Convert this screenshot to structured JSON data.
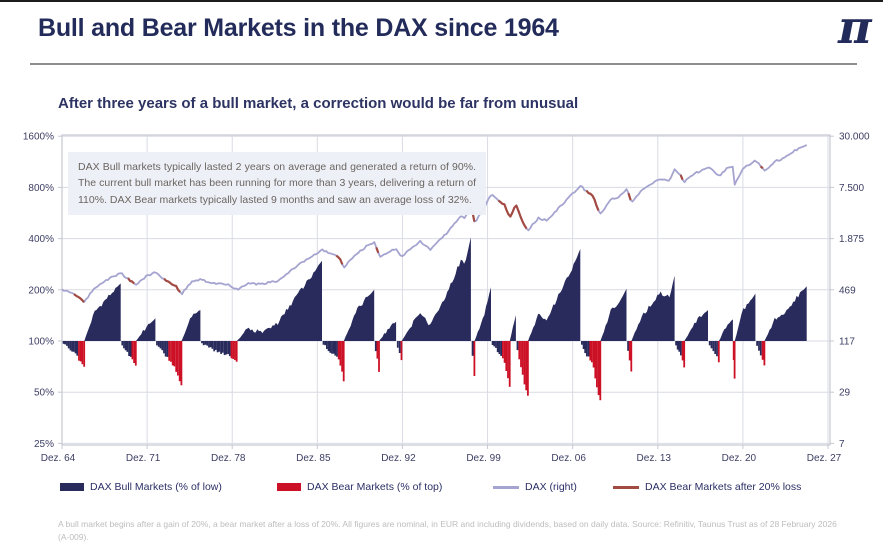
{
  "header": {
    "title": "Bull and Bear Markets in the DAX since 1964",
    "logo_symbol": "π"
  },
  "subtitle": "After three years of a bull market, a correction would be far from unusual",
  "annotation": "DAX Bull markets typically lasted 2 years on average and generated a return of 90%. The current bull market has been running for more than 3 years, delivering a return of 110%. DAX Bear markets typically lasted 9 months and saw an average loss of 32%.",
  "footnote": "A bull market begins after a gain of 20%, a bear market after a loss of 20%. All figures are nominal, in EUR and including dividends, based on daily data. Source: Refinitiv, Taunus Trust as of 28 February 2026 (A-009).",
  "colors": {
    "navy": "#282b5c",
    "red": "#cc1126",
    "dax_line": "#a5a4d0",
    "dax_bear_line": "#a34a42",
    "grid": "#dadbe4",
    "plot_border": "#c6c8d2",
    "axis_label": "#3b3e63",
    "title": "#222b5a",
    "annotation_bg": "#edeff7",
    "annotation_text": "#6a6560",
    "footnote": "#bdbdbd"
  },
  "legend": {
    "items": [
      {
        "label": "DAX Bull Markets (% of low)",
        "swatch": "area",
        "color_key": "navy"
      },
      {
        "label": "DAX Bear Markets (% of top)",
        "swatch": "area",
        "color_key": "red"
      },
      {
        "label": "DAX (right)",
        "swatch": "line",
        "color_key": "dax_line"
      },
      {
        "label": "DAX Bear Markets after 20% loss",
        "swatch": "line",
        "color_key": "dax_bear_line"
      }
    ]
  },
  "axes": {
    "y_left": {
      "labels": [
        "1600%",
        "800%",
        "400%",
        "200%",
        "100%",
        "50%",
        "25%"
      ]
    },
    "y_right": {
      "labels": [
        "30.000",
        "7.500",
        "1.875",
        "469",
        "117",
        "29",
        "7"
      ]
    },
    "x": {
      "labels": [
        "Dez. 64",
        "Dez. 71",
        "Dez. 78",
        "Dez. 85",
        "Dez. 92",
        "Dez. 99",
        "Dez. 06",
        "Dez. 13",
        "Dez. 20",
        "Dez. 27"
      ]
    }
  },
  "chart_data": {
    "type": "area+line",
    "title": "Bull and Bear Markets in the DAX since 1964",
    "x_domain_years": [
      1964.92,
      2027.92
    ],
    "x_tick_years": [
      1964.92,
      1971.92,
      1978.92,
      1985.92,
      1992.92,
      1999.92,
      2006.92,
      2013.92,
      2020.92,
      2027.92
    ],
    "y_left": {
      "scale": "log2",
      "unit": "% of segment extreme",
      "ticks_pct": [
        1600,
        800,
        400,
        200,
        100,
        50,
        25
      ]
    },
    "y_right": {
      "scale": "log4",
      "unit": "DAX index level",
      "ticks": [
        30000,
        7500,
        1875,
        469,
        117,
        29,
        7
      ]
    },
    "legend_position": "bottom",
    "grid": true,
    "bull_segments": [
      [
        [
          1966.75,
          100
        ],
        [
          1967.6,
          148
        ],
        [
          1968.6,
          178
        ],
        [
          1969.75,
          218
        ]
      ],
      [
        [
          1971.0,
          100
        ],
        [
          1971.9,
          122
        ],
        [
          1972.6,
          136
        ]
      ],
      [
        [
          1974.75,
          100
        ],
        [
          1975.6,
          142
        ],
        [
          1976.3,
          152
        ]
      ],
      [
        [
          1979.3,
          100
        ],
        [
          1980.2,
          118
        ],
        [
          1981.3,
          112
        ],
        [
          1982.7,
          128
        ],
        [
          1984.1,
          180
        ],
        [
          1985.2,
          228
        ],
        [
          1986.3,
          296
        ]
      ],
      [
        [
          1988.1,
          100
        ],
        [
          1989.1,
          148
        ],
        [
          1989.9,
          178
        ],
        [
          1990.6,
          200
        ]
      ],
      [
        [
          1991.0,
          100
        ],
        [
          1992.0,
          124
        ],
        [
          1992.4,
          130
        ]
      ],
      [
        [
          1992.85,
          100
        ],
        [
          1994.4,
          150
        ],
        [
          1995.2,
          123
        ],
        [
          1996.5,
          185
        ],
        [
          1997.75,
          302
        ],
        [
          1998.05,
          278
        ],
        [
          1998.55,
          408
        ]
      ],
      [
        [
          1998.85,
          100
        ],
        [
          1999.6,
          138
        ],
        [
          2000.2,
          207
        ]
      ],
      [
        [
          2001.75,
          100
        ],
        [
          2002.25,
          142
        ]
      ],
      [
        [
          2003.25,
          100
        ],
        [
          2004.1,
          142
        ],
        [
          2004.8,
          136
        ],
        [
          2006.1,
          205
        ],
        [
          2007.1,
          290
        ],
        [
          2007.55,
          348
        ]
      ],
      [
        [
          2009.2,
          100
        ],
        [
          2010.1,
          152
        ],
        [
          2010.6,
          158
        ],
        [
          2011.35,
          203
        ]
      ],
      [
        [
          2011.75,
          100
        ],
        [
          2012.6,
          138
        ],
        [
          2013.6,
          172
        ],
        [
          2014.1,
          192
        ],
        [
          2014.9,
          182
        ],
        [
          2015.3,
          242
        ]
      ],
      [
        [
          2016.1,
          100
        ],
        [
          2017.1,
          132
        ],
        [
          2018.05,
          152
        ]
      ],
      [
        [
          2018.95,
          100
        ],
        [
          2019.6,
          124
        ],
        [
          2020.1,
          134
        ]
      ],
      [
        [
          2020.25,
          100
        ],
        [
          2020.9,
          152
        ],
        [
          2021.6,
          176
        ],
        [
          2021.95,
          190
        ]
      ],
      [
        [
          2022.7,
          100
        ],
        [
          2023.6,
          136
        ],
        [
          2024.1,
          142
        ],
        [
          2024.9,
          162
        ],
        [
          2025.6,
          190
        ],
        [
          2026.17,
          210
        ]
      ]
    ],
    "bear_segments": [
      [
        [
          1964.92,
          100
        ],
        [
          1965.7,
          89
        ],
        [
          1966.1,
          84
        ],
        [
          1966.75,
          71
        ]
      ],
      [
        [
          1969.75,
          100
        ],
        [
          1970.5,
          83
        ],
        [
          1971.0,
          74
        ]
      ],
      [
        [
          1972.6,
          100
        ],
        [
          1973.6,
          81
        ],
        [
          1974.2,
          72
        ],
        [
          1974.75,
          55
        ]
      ],
      [
        [
          1976.3,
          100
        ],
        [
          1977.5,
          89
        ],
        [
          1978.6,
          84
        ],
        [
          1979.3,
          76
        ]
      ],
      [
        [
          1986.3,
          100
        ],
        [
          1987.1,
          86
        ],
        [
          1987.7,
          80
        ],
        [
          1988.1,
          60
        ]
      ],
      [
        [
          1990.6,
          100
        ],
        [
          1990.85,
          82
        ],
        [
          1991.0,
          66
        ]
      ],
      [
        [
          1992.4,
          100
        ],
        [
          1992.85,
          79
        ]
      ],
      [
        [
          1998.55,
          100
        ],
        [
          1998.72,
          82
        ],
        [
          1998.85,
          63
        ]
      ],
      [
        [
          2000.2,
          100
        ],
        [
          2000.8,
          88
        ],
        [
          2001.3,
          77
        ],
        [
          2001.6,
          62
        ],
        [
          2001.75,
          54
        ]
      ],
      [
        [
          2002.25,
          100
        ],
        [
          2002.7,
          70
        ],
        [
          2003.0,
          55
        ],
        [
          2003.25,
          49
        ]
      ],
      [
        [
          2007.55,
          100
        ],
        [
          2008.1,
          84
        ],
        [
          2008.6,
          74
        ],
        [
          2008.9,
          56
        ],
        [
          2009.2,
          45
        ]
      ],
      [
        [
          2011.35,
          100
        ],
        [
          2011.6,
          81
        ],
        [
          2011.75,
          68
        ]
      ],
      [
        [
          2015.3,
          100
        ],
        [
          2015.8,
          85
        ],
        [
          2016.1,
          71
        ]
      ],
      [
        [
          2018.05,
          100
        ],
        [
          2018.6,
          88
        ],
        [
          2018.95,
          77
        ]
      ],
      [
        [
          2020.1,
          100
        ],
        [
          2020.25,
          61
        ]
      ],
      [
        [
          2021.95,
          100
        ],
        [
          2022.3,
          88
        ],
        [
          2022.55,
          80
        ],
        [
          2022.7,
          74
        ]
      ]
    ],
    "dax_line": [
      [
        1964.92,
        470
      ],
      [
        1965.7,
        420
      ],
      [
        1966.1,
        400
      ],
      [
        1966.75,
        340
      ],
      [
        1967.6,
        500
      ],
      [
        1968.6,
        600
      ],
      [
        1969.75,
        740
      ],
      [
        1970.5,
        615
      ],
      [
        1971.0,
        548
      ],
      [
        1971.9,
        668
      ],
      [
        1972.6,
        745
      ],
      [
        1973.6,
        600
      ],
      [
        1974.2,
        535
      ],
      [
        1974.75,
        410
      ],
      [
        1975.6,
        580
      ],
      [
        1976.3,
        625
      ],
      [
        1977.5,
        556
      ],
      [
        1978.6,
        525
      ],
      [
        1979.3,
        475
      ],
      [
        1980.2,
        560
      ],
      [
        1981.3,
        532
      ],
      [
        1982.7,
        608
      ],
      [
        1984.1,
        855
      ],
      [
        1985.2,
        1083
      ],
      [
        1986.3,
        1405
      ],
      [
        1987.1,
        1210
      ],
      [
        1987.7,
        1125
      ],
      [
        1988.1,
        845
      ],
      [
        1989.1,
        1250
      ],
      [
        1989.9,
        1505
      ],
      [
        1990.6,
        1690
      ],
      [
        1990.85,
        1385
      ],
      [
        1991.0,
        1115
      ],
      [
        1992.0,
        1385
      ],
      [
        1992.4,
        1450
      ],
      [
        1992.85,
        1145
      ],
      [
        1994.4,
        1720
      ],
      [
        1995.2,
        1410
      ],
      [
        1996.5,
        2120
      ],
      [
        1997.75,
        3465
      ],
      [
        1998.05,
        3190
      ],
      [
        1998.55,
        4680
      ],
      [
        1998.72,
        3835
      ],
      [
        1998.85,
        2950
      ],
      [
        1999.6,
        4070
      ],
      [
        2000.2,
        6105
      ],
      [
        2000.8,
        5370
      ],
      [
        2001.3,
        4700
      ],
      [
        2001.6,
        3785
      ],
      [
        2001.75,
        3295
      ],
      [
        2002.25,
        4680
      ],
      [
        2002.7,
        3275
      ],
      [
        2003.0,
        2575
      ],
      [
        2003.25,
        2295
      ],
      [
        2004.1,
        3260
      ],
      [
        2004.8,
        3120
      ],
      [
        2006.1,
        4705
      ],
      [
        2007.1,
        6655
      ],
      [
        2007.55,
        7985
      ],
      [
        2008.1,
        6710
      ],
      [
        2008.6,
        5910
      ],
      [
        2008.9,
        4470
      ],
      [
        2009.2,
        3595
      ],
      [
        2010.1,
        5465
      ],
      [
        2010.6,
        5680
      ],
      [
        2011.35,
        7300
      ],
      [
        2011.6,
        5915
      ],
      [
        2011.75,
        4965
      ],
      [
        2012.6,
        6850
      ],
      [
        2013.6,
        8540
      ],
      [
        2014.1,
        9535
      ],
      [
        2014.9,
        9035
      ],
      [
        2015.3,
        12015
      ],
      [
        2015.8,
        10215
      ],
      [
        2016.1,
        8530
      ],
      [
        2017.1,
        11260
      ],
      [
        2018.05,
        12965
      ],
      [
        2018.6,
        11410
      ],
      [
        2018.95,
        9985
      ],
      [
        2019.6,
        12380
      ],
      [
        2020.1,
        13380
      ],
      [
        2020.25,
        8160
      ],
      [
        2020.9,
        12405
      ],
      [
        2021.6,
        14365
      ],
      [
        2021.95,
        15510
      ],
      [
        2022.3,
        13650
      ],
      [
        2022.55,
        12410
      ],
      [
        2022.7,
        11475
      ],
      [
        2023.6,
        15605
      ],
      [
        2024.1,
        16295
      ],
      [
        2024.9,
        18590
      ],
      [
        2025.6,
        21800
      ],
      [
        2026.17,
        24095
      ]
    ],
    "dax_bear_line_ranges": [
      [
        1965.9,
        1966.75
      ],
      [
        1970.2,
        1971.0
      ],
      [
        1973.3,
        1974.75
      ],
      [
        1987.4,
        1988.1
      ],
      [
        1990.75,
        1991.0
      ],
      [
        1998.65,
        1998.85
      ],
      [
        2000.7,
        2003.25
      ],
      [
        2008.0,
        2009.2
      ],
      [
        2011.5,
        2011.75
      ],
      [
        2015.7,
        2016.1
      ],
      [
        2020.12,
        2020.3
      ],
      [
        2022.25,
        2022.7
      ]
    ]
  }
}
